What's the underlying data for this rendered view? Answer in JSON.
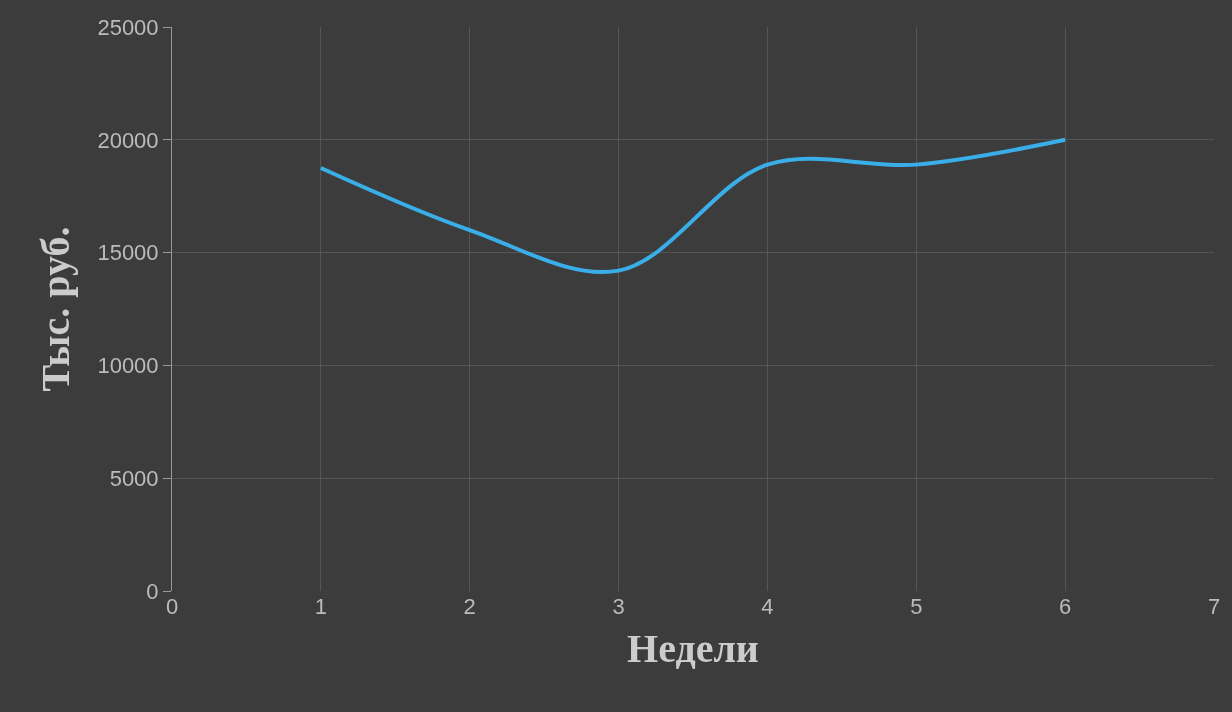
{
  "chart_data": {
    "type": "line",
    "xlabel": "Недели",
    "ylabel": "Тыс. руб.",
    "x": [
      1,
      2,
      3,
      4,
      5,
      6
    ],
    "series": [
      {
        "color": "#3aaee8",
        "values": [
          18750,
          16000,
          14200,
          18900,
          18900,
          20000
        ]
      }
    ],
    "xlim": [
      0,
      7
    ],
    "xticks": [
      0,
      1,
      2,
      3,
      4,
      5,
      6,
      7
    ],
    "ylim": [
      0,
      25000
    ],
    "yticks": [
      0,
      5000,
      10000,
      15000,
      20000,
      25000
    ],
    "grid": true,
    "marker": "none",
    "line_style": "solid"
  }
}
